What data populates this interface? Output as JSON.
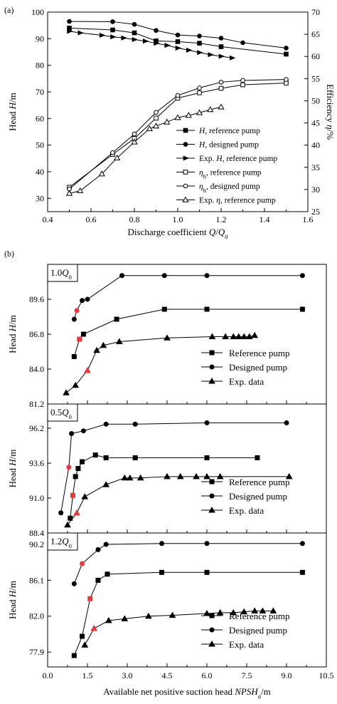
{
  "chart_data": [
    {
      "panel": "(a)",
      "type": "line",
      "xlabel_parts": [
        "Discharge coefficient ",
        "Q",
        "/",
        "Q",
        "0"
      ],
      "ylabel_left_parts": [
        "Head ",
        "H",
        "/m"
      ],
      "ylabel_right_parts": [
        "Efficiency ",
        "η",
        "/%"
      ],
      "xlim": [
        0.4,
        1.6
      ],
      "ylim_left": [
        25,
        100
      ],
      "ylim_right": [
        25,
        70
      ],
      "x_ticks": [
        "0.4",
        "0.6",
        "0.8",
        "1.0",
        "1.2",
        "1.4",
        "1.6"
      ],
      "y_left_ticks": [
        "30",
        "40",
        "50",
        "60",
        "70",
        "80",
        "90",
        "100"
      ],
      "y_right_ticks": [
        "25",
        "30",
        "35",
        "40",
        "45",
        "50",
        "55",
        "60",
        "65",
        "70"
      ],
      "series": [
        {
          "label_parts": [
            "H",
            ", reference pump"
          ],
          "axis": "left",
          "marker": "square-filled",
          "x": [
            0.5,
            0.7,
            0.8,
            0.9,
            1.0,
            1.1,
            1.2,
            1.5
          ],
          "y": [
            94,
            93.3,
            92.2,
            89.2,
            88.9,
            88.3,
            87.0,
            84.2
          ]
        },
        {
          "label_parts": [
            "H",
            ", designed pump"
          ],
          "axis": "left",
          "marker": "circle-filled",
          "x": [
            0.5,
            0.7,
            0.8,
            0.9,
            1.0,
            1.1,
            1.2,
            1.3,
            1.5
          ],
          "y": [
            96.5,
            96.4,
            95.4,
            93.1,
            91.4,
            91.0,
            90.2,
            88.5,
            86.5
          ]
        },
        {
          "label_parts": [
            "Exp. ",
            "H",
            ", reference pump"
          ],
          "axis": "left",
          "marker": "triangle-right-filled",
          "x": [
            0.5,
            0.55,
            0.65,
            0.7,
            0.75,
            0.8,
            0.85,
            0.9,
            0.95,
            1.0,
            1.05,
            1.1,
            1.15,
            1.2,
            1.25
          ],
          "y": [
            92.8,
            92.2,
            91.3,
            90.7,
            90.3,
            89.7,
            89.1,
            88.3,
            87.5,
            86.5,
            85.7,
            84.8,
            84.0,
            83.4,
            82.8
          ]
        },
        {
          "label_parts": [
            "η",
            "h",
            ", reference pump"
          ],
          "axis": "right",
          "marker": "square-open",
          "x": [
            0.5,
            0.7,
            0.8,
            0.9,
            1.0,
            1.1,
            1.2,
            1.3,
            1.5
          ],
          "y": [
            30.5,
            37.9,
            41.5,
            46.1,
            50.6,
            51.8,
            52.8,
            53.6,
            54.0
          ]
        },
        {
          "label_parts": [
            "η",
            "h",
            ", designed pump"
          ],
          "axis": "right",
          "marker": "circle-open",
          "x": [
            0.5,
            0.7,
            0.8,
            0.9,
            1.0,
            1.1,
            1.2,
            1.3,
            1.5
          ],
          "y": [
            30.1,
            38.3,
            42.5,
            47.4,
            51.2,
            52.9,
            54.2,
            54.6,
            54.8
          ]
        },
        {
          "label_parts": [
            "Exp. ",
            "η",
            ", reference pump"
          ],
          "axis": "right",
          "marker": "triangle-open",
          "x": [
            0.5,
            0.55,
            0.65,
            0.72,
            0.8,
            0.87,
            0.9,
            0.95,
            1.0,
            1.05,
            1.1,
            1.15,
            1.2
          ],
          "y": [
            29.1,
            29.7,
            33.5,
            37.1,
            40.7,
            43.7,
            44.3,
            45.2,
            46.2,
            46.7,
            47.3,
            48.0,
            48.6
          ]
        }
      ]
    },
    {
      "panel": "(b)",
      "type": "line",
      "xlabel_parts": [
        "Available net positive suction head ",
        "NPSH",
        "a",
        "/m"
      ],
      "ylabel_parts": [
        "Head ",
        "H",
        "/m"
      ],
      "xlim": [
        0,
        10.5
      ],
      "x_ticks": [
        "0.0",
        "1.5",
        "3.0",
        "4.5",
        "6.0",
        "7.5",
        "9.0",
        "10.5"
      ],
      "legend_labels": [
        "Reference pump",
        "Designed pump",
        "Exp. data"
      ],
      "highlight_color": "#e8383b",
      "subplots": [
        {
          "label_parts": [
            "1.0",
            "Q",
            "0"
          ],
          "ylim": [
            81.2,
            92.4
          ],
          "y_ticks": [
            "81.2",
            "84.0",
            "86.8",
            "89.6"
          ],
          "series": [
            {
              "name": "Reference pump",
              "marker": "square",
              "x": [
                1.0,
                1.2,
                1.35,
                2.6,
                4.4,
                6.0,
                9.6
              ],
              "y": [
                85.0,
                86.4,
                86.8,
                88.0,
                88.8,
                88.8,
                88.8
              ],
              "highlight_index": 1
            },
            {
              "name": "Designed pump",
              "marker": "circle",
              "x": [
                1.0,
                1.1,
                1.3,
                1.5,
                2.8,
                4.4,
                6.0,
                9.6
              ],
              "y": [
                88.0,
                88.7,
                89.5,
                89.6,
                91.5,
                91.5,
                91.5,
                91.5
              ],
              "highlight_index": 1
            },
            {
              "name": "Exp. data",
              "marker": "triangle",
              "x": [
                0.7,
                1.05,
                1.5,
                1.85,
                2.1,
                2.7,
                4.5,
                6.2,
                6.7,
                7.0,
                7.2,
                7.4,
                7.6,
                7.8
              ],
              "y": [
                82.1,
                82.7,
                83.9,
                85.5,
                85.9,
                86.2,
                86.5,
                86.6,
                86.6,
                86.6,
                86.6,
                86.6,
                86.6,
                86.7
              ],
              "highlight_index": 2
            }
          ]
        },
        {
          "label_parts": [
            "0.5",
            "Q",
            "0"
          ],
          "ylim": [
            88.4,
            98.0
          ],
          "y_ticks": [
            "88.4",
            "91.0",
            "93.6",
            "96.2"
          ],
          "series": [
            {
              "name": "Reference pump",
              "marker": "square",
              "x": [
                0.85,
                0.95,
                1.05,
                1.15,
                1.3,
                1.8,
                2.2,
                3.3,
                6.0,
                7.9
              ],
              "y": [
                89.5,
                91.2,
                92.6,
                93.2,
                93.7,
                94.2,
                94.0,
                94.0,
                94.0,
                94.0
              ],
              "highlight_index": 1
            },
            {
              "name": "Designed pump",
              "marker": "circle",
              "x": [
                0.5,
                0.8,
                0.9,
                1.35,
                2.2,
                3.3,
                6.0,
                9.0
              ],
              "y": [
                89.9,
                93.3,
                95.8,
                96.0,
                96.5,
                96.5,
                96.6,
                96.6
              ],
              "highlight_index": 1
            },
            {
              "name": "Exp. data",
              "marker": "triangle",
              "x": [
                0.75,
                1.1,
                1.4,
                2.2,
                2.9,
                3.1,
                3.5,
                4.5,
                5.0,
                5.6,
                6.0,
                6.5,
                9.1
              ],
              "y": [
                89.0,
                89.9,
                91.1,
                92.0,
                92.5,
                92.5,
                92.5,
                92.6,
                92.6,
                92.6,
                92.6,
                92.6,
                92.6
              ],
              "highlight_index": 1
            }
          ]
        },
        {
          "label_parts": [
            "1.2",
            "Q",
            "0"
          ],
          "ylim": [
            76.2,
            91.5
          ],
          "y_ticks": [
            "77.9",
            "82.0",
            "86.1",
            "90.2"
          ],
          "series": [
            {
              "name": "Reference pump",
              "marker": "square",
              "x": [
                1.0,
                1.3,
                1.6,
                1.9,
                2.25,
                4.3,
                6.0,
                9.6
              ],
              "y": [
                77.5,
                79.7,
                84.0,
                86.1,
                86.8,
                87.0,
                87.0,
                87.0
              ],
              "highlight_index": 2
            },
            {
              "name": "Designed pump",
              "marker": "circle",
              "x": [
                1.0,
                1.3,
                1.9,
                2.2,
                4.3,
                6.0,
                9.6
              ],
              "y": [
                85.7,
                88.0,
                89.6,
                90.2,
                90.3,
                90.3,
                90.3
              ],
              "highlight_index": 1
            },
            {
              "name": "Exp. data",
              "marker": "triangle",
              "x": [
                1.4,
                1.75,
                2.3,
                2.9,
                3.8,
                4.7,
                6.0,
                6.5,
                7.0,
                7.4,
                7.8,
                8.1,
                8.5
              ],
              "y": [
                78.7,
                80.6,
                81.5,
                81.7,
                82.0,
                82.1,
                82.3,
                82.4,
                82.4,
                82.5,
                82.6,
                82.6,
                82.6
              ],
              "highlight_index": 1
            }
          ]
        }
      ]
    }
  ]
}
